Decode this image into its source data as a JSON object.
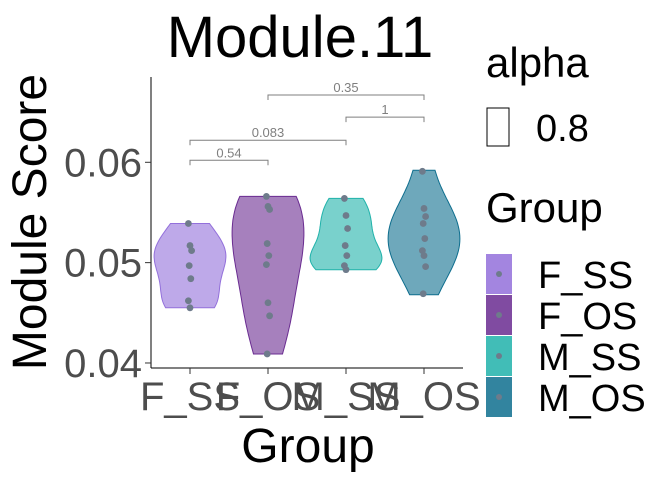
{
  "chart_data": {
    "type": "violin",
    "title": "Module.11",
    "xlabel": "Group",
    "ylabel": "Module Score",
    "ylim": [
      0.0395,
      0.0685
    ],
    "yticks": [
      0.04,
      0.05,
      0.06
    ],
    "ytick_labels": [
      "0.04",
      "0.05",
      "0.06"
    ],
    "categories": [
      "F_SS",
      "F_OS",
      "M_SS",
      "M_OS"
    ],
    "groups": [
      {
        "name": "F_SS",
        "color": "#9370DB",
        "min": 0.0455,
        "max": 0.0539,
        "points": [
          0.0539,
          0.0517,
          0.0512,
          0.0497,
          0.0484,
          0.0462,
          0.0455
        ]
      },
      {
        "name": "F_OS",
        "color": "#6A2C91",
        "min": 0.0409,
        "max": 0.0566,
        "points": [
          0.0566,
          0.0556,
          0.0553,
          0.0519,
          0.0507,
          0.0498,
          0.046,
          0.0447,
          0.0409
        ]
      },
      {
        "name": "M_SS",
        "color": "#20B2AA",
        "min": 0.0493,
        "max": 0.0564,
        "points": [
          0.0564,
          0.0547,
          0.0534,
          0.0517,
          0.0507,
          0.0497,
          0.0493
        ]
      },
      {
        "name": "M_OS",
        "color": "#0E6E8E",
        "min": 0.0468,
        "max": 0.0592,
        "points": [
          0.0591,
          0.0554,
          0.0546,
          0.0539,
          0.0524,
          0.0512,
          0.0507,
          0.0496,
          0.0469
        ]
      }
    ],
    "comparisons": [
      {
        "from": "F_SS",
        "to": "F_OS",
        "label": "0.54",
        "y": 0.0602
      },
      {
        "from": "F_SS",
        "to": "M_SS",
        "label": "0.083",
        "y": 0.0622
      },
      {
        "from": "M_SS",
        "to": "M_OS",
        "label": "1",
        "y": 0.0645
      },
      {
        "from": "F_OS",
        "to": "M_OS",
        "label": "0.35",
        "y": 0.0667
      }
    ],
    "point_color": "#6E7B8B",
    "fill_alpha": 0.8,
    "legend": {
      "alpha_title": "alpha",
      "alpha_value": "0.8",
      "group_title": "Group",
      "entries": [
        "F_SS",
        "F_OS",
        "M_SS",
        "M_OS"
      ],
      "placement": "right"
    },
    "grid": false
  }
}
